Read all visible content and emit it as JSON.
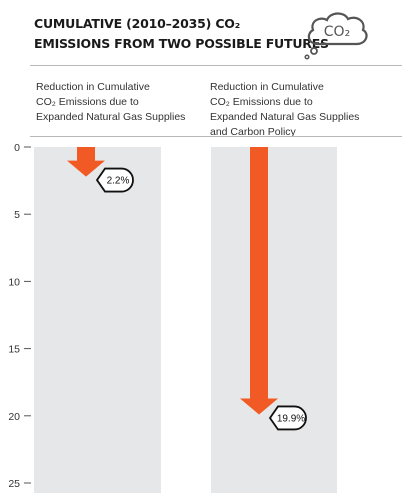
{
  "title": {
    "line1": "CUMULATIVE (2010–2035) CO₂",
    "line2": "EMISSIONS FROM TWO POSSIBLE FUTURES"
  },
  "icon": {
    "name": "co2-cloud-icon",
    "text": "CO₂"
  },
  "panels": [
    {
      "label_lines": [
        "Reduction in Cumulative",
        "CO₂ Emissions due to",
        "Expanded Natural Gas Supplies"
      ]
    },
    {
      "label_lines": [
        "Reduction in Cumulative",
        "CO₂ Emissions due to",
        "Expanded Natural Gas Supplies",
        "and Carbon Policy"
      ]
    }
  ],
  "colors": {
    "arrow": "#f15a24",
    "column": "#e6e7e8",
    "text": "#1a1a1a"
  },
  "chart_data": {
    "type": "bar",
    "categories": [
      "Reduction in Cumulative CO₂ Emissions due to Expanded Natural Gas Supplies",
      "Reduction in Cumulative CO₂ Emissions due to Expanded Natural Gas Supplies and Carbon Policy"
    ],
    "values": [
      2.2,
      19.9
    ],
    "data_labels": [
      "2.2%",
      "19.9%"
    ],
    "ylim": [
      0,
      25
    ],
    "y_inverted": true,
    "yticks": [
      0,
      5,
      10,
      15,
      20,
      25
    ],
    "ytick_labels": [
      "0",
      "5",
      "10",
      "15",
      "20",
      "25"
    ],
    "grid": false,
    "legend": "none"
  }
}
